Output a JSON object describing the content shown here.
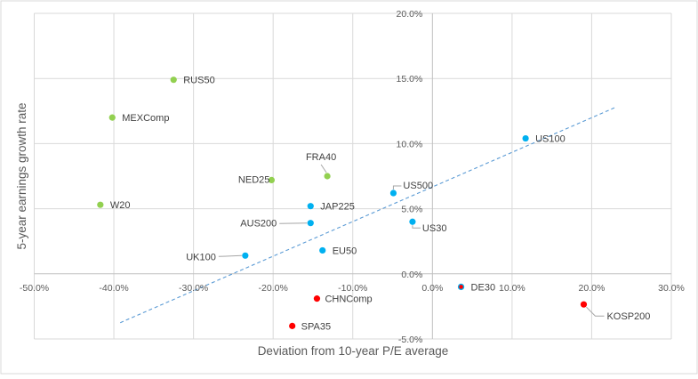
{
  "chart_data": {
    "type": "scatter",
    "title": "",
    "xlabel": "Deviation from 10-year P/E average",
    "ylabel": "5-year earnings growth rate",
    "xlim": [
      -50,
      30
    ],
    "ylim": [
      -5,
      20
    ],
    "x_ticks": [
      -50,
      -40,
      -30,
      -20,
      -10,
      0,
      10,
      20,
      30
    ],
    "y_ticks": [
      -5,
      0,
      5,
      10,
      15,
      20
    ],
    "x_tick_labels": [
      "-50.0%",
      "-40.0%",
      "-30.0%",
      "-20.0%",
      "-10.0%",
      "0.0%",
      "10.0%",
      "20.0%",
      "30.0%"
    ],
    "y_tick_labels": [
      "-5.0%",
      "0.0%",
      "5.0%",
      "10.0%",
      "15.0%",
      "20.0%"
    ],
    "grid": true,
    "legend": "none",
    "unit": "percent",
    "colors": {
      "green": "#92D050",
      "blue": "#00B0F0",
      "red": "#FF0000",
      "trendline": "#5B9BD5",
      "grid": "#D9D9D9",
      "axis": "#BFBFBF"
    },
    "points": [
      {
        "label": "RUS50",
        "x": -32.5,
        "y": 14.9,
        "group": "green"
      },
      {
        "label": "MEXComp",
        "x": -40.2,
        "y": 12.0,
        "group": "green"
      },
      {
        "label": "W20",
        "x": -41.7,
        "y": 5.3,
        "group": "green"
      },
      {
        "label": "NED25",
        "x": -20.2,
        "y": 7.2,
        "group": "green"
      },
      {
        "label": "FRA40",
        "x": -13.2,
        "y": 7.5,
        "group": "green"
      },
      {
        "label": "JAP225",
        "x": -15.3,
        "y": 5.2,
        "group": "blue"
      },
      {
        "label": "AUS200",
        "x": -15.3,
        "y": 3.9,
        "group": "blue"
      },
      {
        "label": "UK100",
        "x": -23.5,
        "y": 1.4,
        "group": "blue"
      },
      {
        "label": "EU50",
        "x": -13.8,
        "y": 1.8,
        "group": "blue"
      },
      {
        "label": "US500",
        "x": -4.9,
        "y": 6.2,
        "group": "blue"
      },
      {
        "label": "US30",
        "x": -2.5,
        "y": 4.0,
        "group": "blue"
      },
      {
        "label": "US100",
        "x": 11.7,
        "y": 10.4,
        "group": "blue"
      },
      {
        "label": "CHNComp",
        "x": -14.5,
        "y": -1.9,
        "group": "red"
      },
      {
        "label": "SPA35",
        "x": -17.6,
        "y": -4.0,
        "group": "red"
      },
      {
        "label": "DE30",
        "x": 3.6,
        "y": -1.0,
        "group": "red-blue-outline"
      },
      {
        "label": "KOSP200",
        "x": 19.0,
        "y": -2.35,
        "group": "red"
      }
    ],
    "trendline": {
      "type": "linear",
      "style": "dashed",
      "x": [
        -39.2,
        22.9
      ],
      "y": [
        -3.75,
        12.76
      ]
    }
  }
}
